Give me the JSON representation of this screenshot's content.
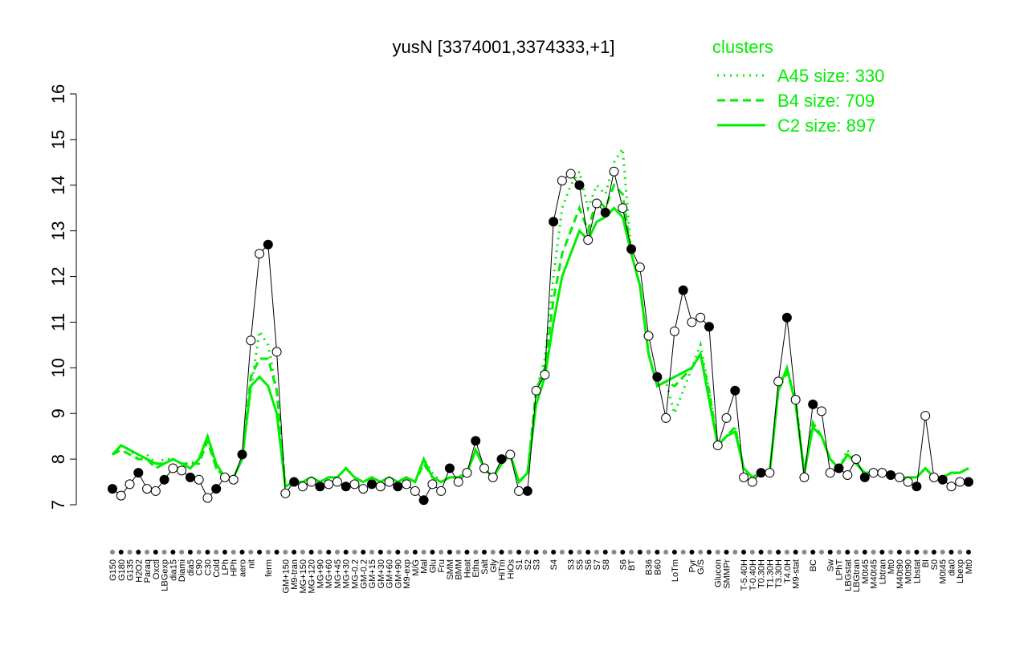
{
  "chart_data": {
    "type": "line",
    "title": "yusN [3374001,3374333,+1]",
    "categories": [
      "G150",
      "G180",
      "G135",
      "H2O2",
      "Paraq",
      "Oxctl",
      "LBGexp",
      "dia15",
      "Diami",
      "dia5",
      "C90",
      "C30",
      "Cold",
      "LPh",
      "HPh",
      "aero",
      "nit",
      null,
      "ferm",
      null,
      "GM+150",
      "M9-tran",
      "MG+150",
      "MG+120",
      "MG+90",
      "MG+60",
      "MG+45",
      "MG+30",
      "MG-0.2",
      "GM-0.2",
      "GM+15",
      "GM+30",
      "GM+60",
      "GM+90",
      "M9-exp",
      "M/G",
      "Mal",
      "Glu",
      "Fru",
      "SMM",
      "BMM",
      "Heat",
      "Etha",
      "Salt",
      "Gly",
      "HiTm",
      "HiOs",
      "S1",
      "S2",
      "S3",
      null,
      "S4",
      null,
      "S3",
      "S5",
      "S6",
      "S7",
      "S8",
      null,
      "S6",
      "BT",
      null,
      "B36",
      "B60",
      null,
      "LoTm",
      null,
      "Pyr",
      "G/S",
      null,
      "Glucon",
      "SMMPr",
      null,
      "T-5.40H",
      "T-0.40H",
      "T0.30H",
      "T1.30H",
      "T3.30H",
      "T4.0H",
      "M9-stat",
      null,
      "BC",
      null,
      "Sw",
      "LPhT",
      "LBGstat",
      "LBGtran",
      "M0t45",
      "M40t45",
      "Lbtran",
      "Mt0",
      "M40t90",
      "M0t90",
      "Lbstat",
      "BI",
      "S0",
      "M0t45",
      "dia0",
      "Lbexp",
      "Mt0"
    ],
    "values": [
      7.35,
      7.2,
      7.45,
      7.7,
      7.35,
      7.3,
      7.55,
      7.8,
      7.75,
      7.6,
      7.55,
      7.15,
      7.35,
      7.6,
      7.55,
      8.1,
      10.6,
      12.5,
      12.7,
      10.35,
      7.25,
      7.5,
      7.4,
      7.5,
      7.4,
      7.45,
      7.5,
      7.4,
      7.45,
      7.35,
      7.45,
      7.4,
      7.5,
      7.4,
      7.45,
      7.3,
      7.1,
      7.45,
      7.3,
      7.8,
      7.5,
      7.7,
      8.4,
      7.8,
      7.6,
      8.0,
      8.1,
      7.3,
      7.3,
      9.5,
      9.85,
      13.2,
      14.1,
      14.25,
      14.0,
      12.8,
      13.6,
      13.4,
      14.3,
      13.5,
      12.6,
      12.2,
      10.7,
      9.8,
      8.9,
      10.8,
      11.7,
      11.0,
      11.1,
      10.9,
      8.3,
      8.9,
      9.5,
      7.6,
      7.5,
      7.7,
      7.7,
      9.7,
      11.1,
      9.3,
      7.6,
      9.2,
      9.05,
      7.7,
      7.8,
      7.65,
      8.0,
      7.6,
      7.7,
      7.7,
      7.65,
      7.6,
      7.5,
      7.4,
      8.95,
      7.6,
      7.55,
      7.4,
      7.5,
      7.5
    ],
    "color": "#000000",
    "legend_title": "clusters",
    "series": [
      {
        "name": "A45 size: 330",
        "color": "#00ee00",
        "dash": "dotted",
        "values": [
          8.1,
          8.3,
          8.2,
          8.0,
          8.1,
          7.9,
          8.0,
          8.0,
          7.9,
          7.9,
          8.0,
          8.5,
          7.8,
          7.6,
          7.6,
          8.0,
          9.5,
          10.8,
          10.5,
          9.5,
          7.4,
          7.5,
          7.5,
          7.6,
          7.5,
          7.6,
          7.6,
          7.8,
          7.6,
          7.5,
          7.6,
          7.5,
          7.6,
          7.5,
          7.6,
          7.5,
          8.0,
          7.7,
          7.5,
          7.6,
          7.6,
          7.7,
          8.2,
          7.8,
          7.6,
          7.9,
          8.1,
          7.5,
          7.7,
          9.5,
          10.2,
          12.0,
          13.5,
          14.0,
          14.3,
          13.5,
          14.0,
          13.8,
          14.5,
          14.8,
          12.5,
          11.8,
          10.3,
          9.6,
          9.7,
          9.0,
          9.5,
          10.0,
          10.5,
          9.5,
          8.3,
          8.5,
          8.7,
          7.8,
          7.6,
          7.7,
          7.7,
          9.5,
          10.0,
          9.3,
          7.7,
          8.8,
          8.5,
          8.0,
          7.8,
          8.2,
          7.9,
          7.7,
          7.7,
          7.7,
          7.7,
          7.6,
          7.6,
          7.6,
          7.8,
          7.6,
          7.6,
          7.7,
          7.7,
          7.8
        ]
      },
      {
        "name": "B4 size: 709",
        "color": "#00ee00",
        "dash": "dashed",
        "values": [
          8.1,
          8.2,
          8.1,
          8.0,
          8.0,
          7.8,
          7.9,
          8.0,
          7.9,
          7.9,
          7.9,
          8.4,
          7.8,
          7.6,
          7.6,
          8.0,
          9.8,
          10.2,
          10.2,
          9.5,
          7.4,
          7.5,
          7.5,
          7.6,
          7.5,
          7.6,
          7.6,
          7.8,
          7.6,
          7.5,
          7.6,
          7.5,
          7.6,
          7.5,
          7.6,
          7.5,
          7.9,
          7.6,
          7.5,
          7.6,
          7.6,
          7.7,
          8.2,
          7.8,
          7.6,
          7.9,
          8.1,
          7.5,
          7.7,
          9.5,
          10.0,
          11.5,
          12.5,
          13.0,
          13.5,
          13.0,
          13.7,
          13.5,
          14.0,
          13.8,
          12.5,
          11.8,
          10.3,
          9.6,
          9.7,
          9.6,
          9.8,
          10.0,
          10.3,
          9.5,
          8.3,
          8.5,
          8.7,
          7.8,
          7.6,
          7.7,
          7.7,
          9.5,
          9.9,
          9.3,
          7.7,
          8.8,
          8.5,
          8.0,
          7.8,
          8.1,
          7.9,
          7.7,
          7.7,
          7.7,
          7.7,
          7.6,
          7.6,
          7.6,
          7.8,
          7.6,
          7.6,
          7.7,
          7.7,
          7.8
        ]
      },
      {
        "name": "C2 size: 897",
        "color": "#00ee00",
        "dash": "solid",
        "values": [
          8.1,
          8.3,
          8.2,
          8.1,
          8.0,
          7.9,
          7.9,
          8.0,
          7.9,
          7.8,
          8.0,
          8.5,
          7.9,
          7.6,
          7.6,
          8.0,
          9.6,
          9.8,
          9.6,
          9.0,
          7.4,
          7.5,
          7.5,
          7.6,
          7.5,
          7.6,
          7.6,
          7.8,
          7.6,
          7.5,
          7.6,
          7.5,
          7.6,
          7.5,
          7.6,
          7.5,
          8.0,
          7.6,
          7.5,
          7.6,
          7.6,
          7.7,
          8.2,
          7.8,
          7.6,
          7.9,
          8.1,
          7.5,
          7.7,
          9.2,
          9.8,
          11.0,
          12.0,
          12.5,
          13.0,
          12.8,
          13.2,
          13.3,
          13.5,
          13.3,
          12.5,
          11.8,
          10.3,
          9.6,
          9.7,
          9.8,
          9.9,
          10.0,
          10.3,
          9.3,
          8.3,
          8.5,
          8.6,
          7.8,
          7.6,
          7.7,
          7.7,
          9.5,
          10.0,
          9.2,
          7.7,
          8.7,
          8.5,
          8.0,
          7.8,
          8.1,
          7.9,
          7.7,
          7.7,
          7.7,
          7.7,
          7.6,
          7.6,
          7.6,
          7.8,
          7.6,
          7.6,
          7.7,
          7.7,
          7.8
        ]
      }
    ],
    "ylim": [
      7,
      16
    ],
    "yticks": [
      7,
      8,
      9,
      10,
      11,
      12,
      13,
      14,
      15,
      16
    ]
  }
}
